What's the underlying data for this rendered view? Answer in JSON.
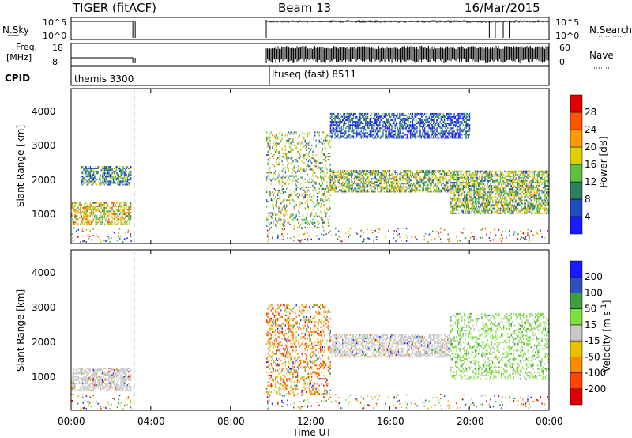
{
  "header": {
    "radar_title": "TIGER (fitACF)",
    "beam": "Beam 13",
    "date": "16/Mar/2015"
  },
  "top_panels": {
    "nsky_label": "N.Sky",
    "nsky_ticks": [
      "10^5",
      "10^0"
    ],
    "nsearch_label": "N.Search",
    "nsearch_ticks": [
      "10^5",
      "10^0"
    ],
    "freq_label_line1": "Freq.",
    "freq_label_line2": "[MHz]",
    "freq_ticks": [
      "18",
      "8"
    ],
    "nave_label": "Nave",
    "nave_ticks": [
      "60",
      "0"
    ],
    "cpid_label": "CPID",
    "cpid_segments": [
      {
        "name": "themis 3300",
        "start_h": 0.0,
        "end_h": 3.1
      },
      {
        "name": "ltuseq (fast) 8511",
        "start_h": 9.8,
        "end_h": 24.0
      }
    ],
    "data_gap_h": [
      3.1,
      9.8
    ]
  },
  "power_panel": {
    "ylabel": "Slant Range [km]",
    "yticks": [
      "1000",
      "2000",
      "3000",
      "4000"
    ],
    "colorbar_label": "Power [dB]",
    "colorbar_ticks": [
      "4",
      "8",
      "12",
      "16",
      "20",
      "24",
      "28"
    ],
    "colors": [
      "#1a1aff",
      "#1f4fbf",
      "#2f7f5f",
      "#5fbf3f",
      "#e0d000",
      "#ff9a00",
      "#ff5500",
      "#e00000"
    ],
    "scale_min_db": 0,
    "scale_max_db": 32
  },
  "velocity_panel": {
    "ylabel": "Slant Range [km]",
    "yticks": [
      "1000",
      "2000",
      "3000",
      "4000"
    ],
    "colorbar_label": "Velocity [m s",
    "colorbar_label_sup": "-1",
    "colorbar_label_end": "]",
    "colorbar_ticks": [
      "200",
      "100",
      "50",
      "15",
      "-15",
      "-50",
      "-100",
      "-200"
    ],
    "colors": [
      "#1a1aff",
      "#2f4fbf",
      "#3f9f3f",
      "#7fdf3f",
      "#c8c8c8",
      "#e8c000",
      "#ff8a00",
      "#ff4400",
      "#e00000"
    ]
  },
  "xaxis": {
    "label": "Time UT",
    "ticks": [
      "00:00",
      "04:00",
      "08:00",
      "12:00",
      "16:00",
      "20:00",
      "00:00"
    ],
    "range_h": [
      0,
      24
    ]
  },
  "chart_data": {
    "type": "heatmap",
    "title": "TIGER (fitACF)",
    "subtitle": "Beam 13 — 16/Mar/2015",
    "xlabel": "Time UT",
    "ylabel": "Slant Range [km]",
    "xlim": [
      0,
      24
    ],
    "ylim": [
      180,
      4500
    ],
    "panels": [
      {
        "name": "Power [dB]",
        "colorbar_range": [
          0,
          32
        ],
        "regions": [
          {
            "t_start_h": 0.0,
            "t_end_h": 3.0,
            "range_km": [
              700,
              1300
            ],
            "value": 20
          },
          {
            "t_start_h": 0.5,
            "t_end_h": 3.0,
            "range_km": [
              1800,
              2300
            ],
            "value": 8
          },
          {
            "t_start_h": 9.8,
            "t_end_h": 13.0,
            "range_km": [
              600,
              3300
            ],
            "value": 14
          },
          {
            "t_start_h": 13.0,
            "t_end_h": 19.0,
            "range_km": [
              1600,
              2200
            ],
            "value": 14
          },
          {
            "t_start_h": 19.0,
            "t_end_h": 24.0,
            "range_km": [
              1000,
              2200
            ],
            "value": 12
          },
          {
            "t_start_h": 13.0,
            "t_end_h": 20.0,
            "range_km": [
              3100,
              3800
            ],
            "value": 6
          }
        ]
      },
      {
        "name": "Velocity [m s-1]",
        "colorbar_range": [
          -250,
          250
        ],
        "regions": [
          {
            "t_start_h": 0.0,
            "t_end_h": 3.0,
            "range_km": [
              700,
              1300
            ],
            "value": 0
          },
          {
            "t_start_h": 9.8,
            "t_end_h": 13.0,
            "range_km": [
              600,
              3000
            ],
            "value": -60
          },
          {
            "t_start_h": 13.0,
            "t_end_h": 19.0,
            "range_km": [
              1600,
              2200
            ],
            "value": 0
          },
          {
            "t_start_h": 19.0,
            "t_end_h": 24.0,
            "range_km": [
              1000,
              2800
            ],
            "value": 40
          }
        ]
      }
    ]
  }
}
